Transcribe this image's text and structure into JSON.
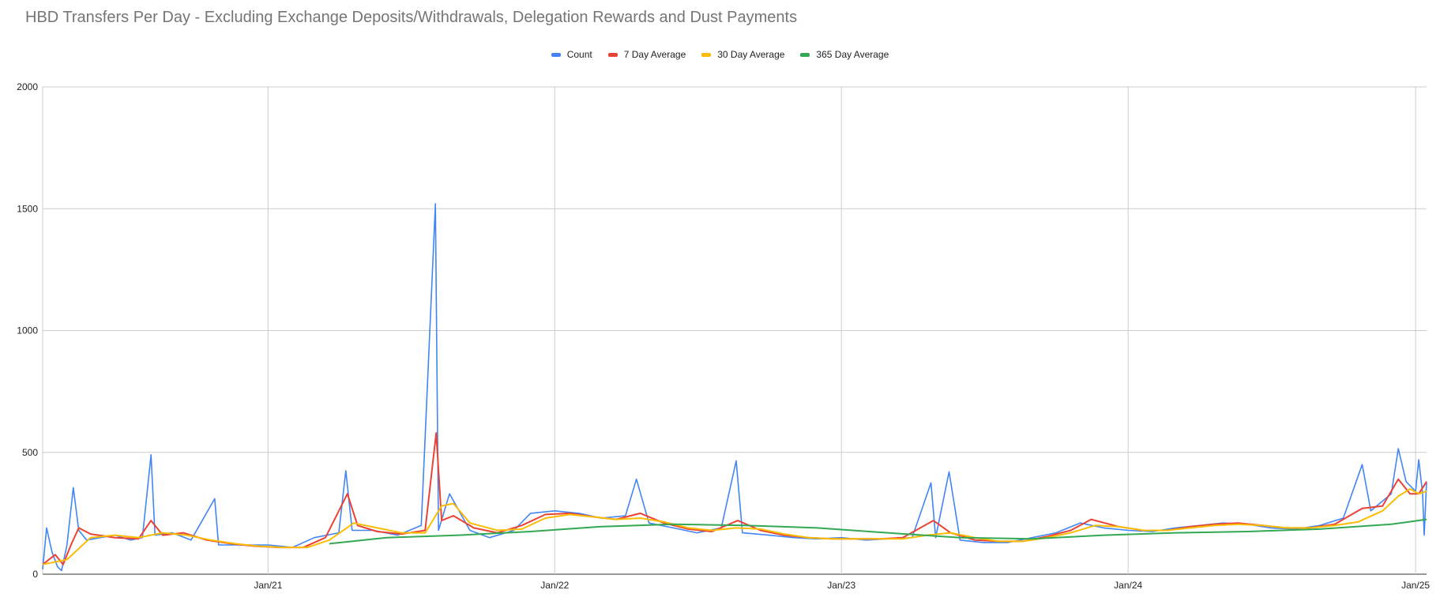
{
  "chart_data": {
    "type": "line",
    "title": "HBD Transfers Per Day - Excluding Exchange Deposits/Withdrawals, Delegation Rewards and Dust Payments",
    "xlabel": "",
    "ylabel": "",
    "ylim": [
      0,
      2000
    ],
    "xlim": [
      "2020-03-20",
      "2025-01-15"
    ],
    "y_ticks": [
      "0",
      "500",
      "1000",
      "1500",
      "2000"
    ],
    "x_ticks": [
      {
        "label": "Jan/21",
        "date": "2021-01-01"
      },
      {
        "label": "Jan/22",
        "date": "2022-01-01"
      },
      {
        "label": "Jan/23",
        "date": "2023-01-01"
      },
      {
        "label": "Jan/24",
        "date": "2024-01-01"
      },
      {
        "label": "Jan/25",
        "date": "2025-01-01"
      }
    ],
    "grid": true,
    "legend_position": "top",
    "series": [
      {
        "name": "Count",
        "color": "#4285F4",
        "points": [
          [
            "2020-03-20",
            20
          ],
          [
            "2020-03-25",
            190
          ],
          [
            "2020-04-01",
            90
          ],
          [
            "2020-04-08",
            30
          ],
          [
            "2020-04-13",
            15
          ],
          [
            "2020-04-20",
            120
          ],
          [
            "2020-04-28",
            355
          ],
          [
            "2020-05-05",
            180
          ],
          [
            "2020-05-15",
            140
          ],
          [
            "2020-06-01",
            150
          ],
          [
            "2020-06-20",
            160
          ],
          [
            "2020-07-10",
            140
          ],
          [
            "2020-07-25",
            150
          ],
          [
            "2020-08-05",
            490
          ],
          [
            "2020-08-10",
            160
          ],
          [
            "2020-09-01",
            170
          ],
          [
            "2020-09-25",
            140
          ],
          [
            "2020-10-25",
            310
          ],
          [
            "2020-10-30",
            120
          ],
          [
            "2020-12-01",
            120
          ],
          [
            "2021-01-01",
            120
          ],
          [
            "2021-02-01",
            110
          ],
          [
            "2021-03-01",
            150
          ],
          [
            "2021-04-01",
            170
          ],
          [
            "2021-04-10",
            425
          ],
          [
            "2021-04-18",
            180
          ],
          [
            "2021-05-15",
            180
          ],
          [
            "2021-06-15",
            160
          ],
          [
            "2021-07-15",
            200
          ],
          [
            "2021-08-02",
            1520
          ],
          [
            "2021-08-06",
            180
          ],
          [
            "2021-08-20",
            330
          ],
          [
            "2021-09-15",
            180
          ],
          [
            "2021-10-10",
            150
          ],
          [
            "2021-11-10",
            180
          ],
          [
            "2021-12-01",
            250
          ],
          [
            "2022-01-01",
            260
          ],
          [
            "2022-02-01",
            250
          ],
          [
            "2022-03-01",
            230
          ],
          [
            "2022-04-01",
            240
          ],
          [
            "2022-04-15",
            390
          ],
          [
            "2022-05-01",
            210
          ],
          [
            "2022-06-01",
            190
          ],
          [
            "2022-07-01",
            170
          ],
          [
            "2022-08-01",
            190
          ],
          [
            "2022-08-20",
            465
          ],
          [
            "2022-08-28",
            170
          ],
          [
            "2022-10-01",
            160
          ],
          [
            "2022-11-01",
            150
          ],
          [
            "2022-12-01",
            145
          ],
          [
            "2023-01-01",
            150
          ],
          [
            "2023-02-01",
            140
          ],
          [
            "2023-03-01",
            145
          ],
          [
            "2023-04-01",
            150
          ],
          [
            "2023-04-25",
            375
          ],
          [
            "2023-05-01",
            150
          ],
          [
            "2023-05-18",
            420
          ],
          [
            "2023-06-01",
            140
          ],
          [
            "2023-07-01",
            130
          ],
          [
            "2023-08-01",
            130
          ],
          [
            "2023-09-01",
            150
          ],
          [
            "2023-10-01",
            170
          ],
          [
            "2023-11-01",
            210
          ],
          [
            "2023-12-01",
            190
          ],
          [
            "2024-01-01",
            180
          ],
          [
            "2024-02-01",
            175
          ],
          [
            "2024-03-01",
            190
          ],
          [
            "2024-04-01",
            200
          ],
          [
            "2024-05-01",
            210
          ],
          [
            "2024-06-01",
            205
          ],
          [
            "2024-07-01",
            190
          ],
          [
            "2024-08-01",
            185
          ],
          [
            "2024-09-01",
            200
          ],
          [
            "2024-10-01",
            230
          ],
          [
            "2024-10-25",
            450
          ],
          [
            "2024-11-05",
            260
          ],
          [
            "2024-12-01",
            330
          ],
          [
            "2024-12-10",
            515
          ],
          [
            "2024-12-20",
            380
          ],
          [
            "2025-01-01",
            340
          ],
          [
            "2025-01-05",
            470
          ],
          [
            "2025-01-10",
            330
          ],
          [
            "2025-01-12",
            160
          ],
          [
            "2025-01-15",
            380
          ]
        ]
      },
      {
        "name": "7 Day Average",
        "color": "#EA4335",
        "points": [
          [
            "2020-03-20",
            40
          ],
          [
            "2020-04-05",
            80
          ],
          [
            "2020-04-15",
            40
          ],
          [
            "2020-04-25",
            120
          ],
          [
            "2020-05-05",
            190
          ],
          [
            "2020-05-20",
            165
          ],
          [
            "2020-06-20",
            150
          ],
          [
            "2020-07-20",
            145
          ],
          [
            "2020-08-05",
            220
          ],
          [
            "2020-08-20",
            160
          ],
          [
            "2020-09-15",
            170
          ],
          [
            "2020-10-15",
            140
          ],
          [
            "2020-11-15",
            125
          ],
          [
            "2020-12-15",
            115
          ],
          [
            "2021-01-15",
            110
          ],
          [
            "2021-02-15",
            110
          ],
          [
            "2021-03-15",
            150
          ],
          [
            "2021-04-12",
            330
          ],
          [
            "2021-04-25",
            200
          ],
          [
            "2021-05-20",
            175
          ],
          [
            "2021-06-20",
            165
          ],
          [
            "2021-07-20",
            180
          ],
          [
            "2021-08-03",
            580
          ],
          [
            "2021-08-10",
            220
          ],
          [
            "2021-08-25",
            240
          ],
          [
            "2021-09-20",
            190
          ],
          [
            "2021-10-20",
            170
          ],
          [
            "2021-11-20",
            200
          ],
          [
            "2021-12-20",
            245
          ],
          [
            "2022-01-20",
            250
          ],
          [
            "2022-02-20",
            235
          ],
          [
            "2022-03-20",
            225
          ],
          [
            "2022-04-20",
            250
          ],
          [
            "2022-05-20",
            210
          ],
          [
            "2022-06-20",
            185
          ],
          [
            "2022-07-20",
            175
          ],
          [
            "2022-08-22",
            220
          ],
          [
            "2022-09-20",
            180
          ],
          [
            "2022-10-20",
            160
          ],
          [
            "2022-11-20",
            150
          ],
          [
            "2022-12-20",
            145
          ],
          [
            "2023-01-20",
            145
          ],
          [
            "2023-02-20",
            145
          ],
          [
            "2023-03-20",
            150
          ],
          [
            "2023-04-28",
            220
          ],
          [
            "2023-05-20",
            170
          ],
          [
            "2023-06-20",
            140
          ],
          [
            "2023-07-20",
            135
          ],
          [
            "2023-08-20",
            135
          ],
          [
            "2023-09-20",
            155
          ],
          [
            "2023-10-20",
            180
          ],
          [
            "2023-11-15",
            225
          ],
          [
            "2023-12-20",
            195
          ],
          [
            "2024-01-20",
            180
          ],
          [
            "2024-02-20",
            180
          ],
          [
            "2024-03-20",
            195
          ],
          [
            "2024-04-20",
            205
          ],
          [
            "2024-05-20",
            210
          ],
          [
            "2024-06-20",
            200
          ],
          [
            "2024-07-20",
            190
          ],
          [
            "2024-08-20",
            190
          ],
          [
            "2024-09-20",
            205
          ],
          [
            "2024-10-25",
            270
          ],
          [
            "2024-11-20",
            280
          ],
          [
            "2024-12-10",
            390
          ],
          [
            "2024-12-25",
            330
          ],
          [
            "2025-01-05",
            330
          ],
          [
            "2025-01-15",
            380
          ]
        ]
      },
      {
        "name": "30 Day Average",
        "color": "#FBBC04",
        "points": [
          [
            "2020-03-20",
            40
          ],
          [
            "2020-04-20",
            60
          ],
          [
            "2020-05-20",
            150
          ],
          [
            "2020-06-20",
            160
          ],
          [
            "2020-07-20",
            150
          ],
          [
            "2020-08-20",
            170
          ],
          [
            "2020-09-20",
            160
          ],
          [
            "2020-10-20",
            140
          ],
          [
            "2020-11-20",
            125
          ],
          [
            "2020-12-20",
            115
          ],
          [
            "2021-01-20",
            110
          ],
          [
            "2021-02-20",
            110
          ],
          [
            "2021-03-20",
            140
          ],
          [
            "2021-04-20",
            210
          ],
          [
            "2021-05-20",
            190
          ],
          [
            "2021-06-20",
            170
          ],
          [
            "2021-07-20",
            170
          ],
          [
            "2021-08-10",
            280
          ],
          [
            "2021-08-25",
            290
          ],
          [
            "2021-09-15",
            210
          ],
          [
            "2021-10-20",
            180
          ],
          [
            "2021-11-20",
            185
          ],
          [
            "2021-12-20",
            230
          ],
          [
            "2022-01-20",
            245
          ],
          [
            "2022-02-20",
            235
          ],
          [
            "2022-03-20",
            225
          ],
          [
            "2022-04-20",
            230
          ],
          [
            "2022-05-20",
            215
          ],
          [
            "2022-06-20",
            190
          ],
          [
            "2022-07-20",
            180
          ],
          [
            "2022-08-20",
            190
          ],
          [
            "2022-09-20",
            185
          ],
          [
            "2022-10-20",
            165
          ],
          [
            "2022-11-20",
            150
          ],
          [
            "2022-12-20",
            145
          ],
          [
            "2023-01-20",
            145
          ],
          [
            "2023-02-20",
            145
          ],
          [
            "2023-03-20",
            145
          ],
          [
            "2023-04-20",
            160
          ],
          [
            "2023-05-20",
            170
          ],
          [
            "2023-06-20",
            150
          ],
          [
            "2023-07-20",
            135
          ],
          [
            "2023-08-20",
            135
          ],
          [
            "2023-09-20",
            150
          ],
          [
            "2023-10-20",
            170
          ],
          [
            "2023-11-20",
            200
          ],
          [
            "2023-12-20",
            195
          ],
          [
            "2024-01-20",
            180
          ],
          [
            "2024-02-20",
            180
          ],
          [
            "2024-03-20",
            190
          ],
          [
            "2024-04-20",
            200
          ],
          [
            "2024-05-20",
            205
          ],
          [
            "2024-06-20",
            200
          ],
          [
            "2024-07-20",
            190
          ],
          [
            "2024-08-20",
            190
          ],
          [
            "2024-09-20",
            200
          ],
          [
            "2024-10-20",
            215
          ],
          [
            "2024-11-20",
            260
          ],
          [
            "2024-12-10",
            320
          ],
          [
            "2024-12-25",
            350
          ],
          [
            "2025-01-05",
            330
          ],
          [
            "2025-01-15",
            340
          ]
        ]
      },
      {
        "name": "365 Day Average",
        "color": "#34A853",
        "points": [
          [
            "2021-03-20",
            125
          ],
          [
            "2021-06-01",
            150
          ],
          [
            "2021-09-01",
            160
          ],
          [
            "2021-12-01",
            175
          ],
          [
            "2022-03-01",
            195
          ],
          [
            "2022-06-01",
            205
          ],
          [
            "2022-09-01",
            200
          ],
          [
            "2022-12-01",
            190
          ],
          [
            "2023-03-01",
            170
          ],
          [
            "2023-06-01",
            150
          ],
          [
            "2023-09-01",
            145
          ],
          [
            "2023-12-01",
            160
          ],
          [
            "2024-03-01",
            170
          ],
          [
            "2024-06-01",
            175
          ],
          [
            "2024-09-01",
            185
          ],
          [
            "2024-12-01",
            205
          ],
          [
            "2025-01-15",
            225
          ]
        ]
      }
    ]
  }
}
